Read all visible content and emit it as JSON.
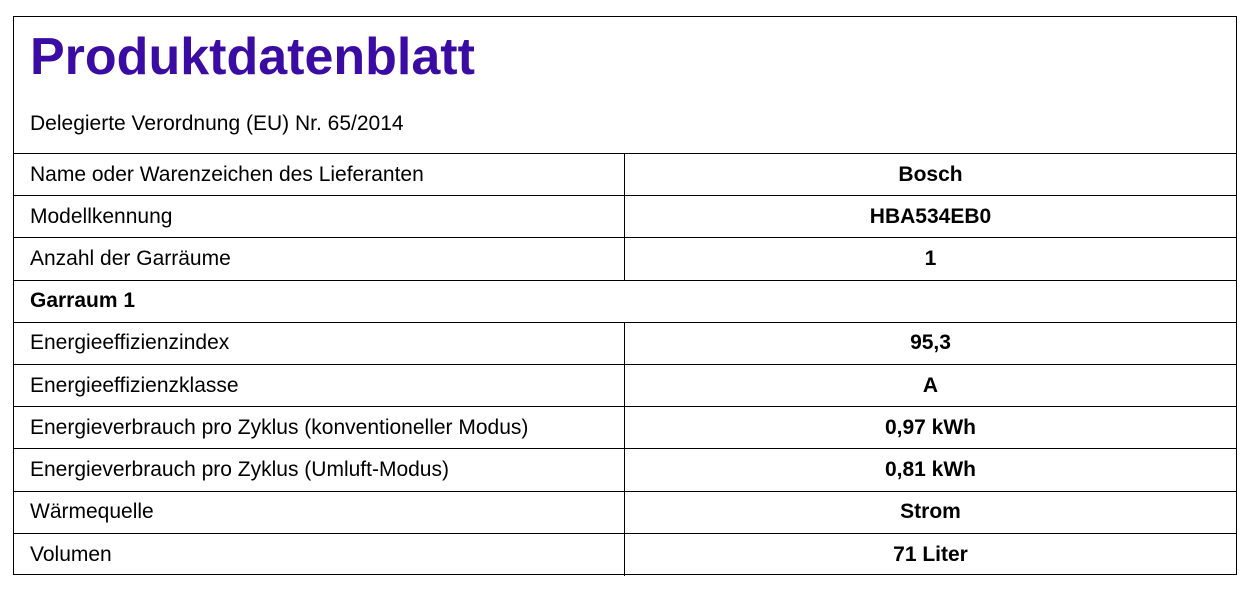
{
  "document": {
    "title": "Produktdatenblatt",
    "subtitle": "Delegierte Verordnung (EU) Nr. 65/2014",
    "title_color": "#3a0ca3"
  },
  "rows": [
    {
      "label": "Name oder Warenzeichen des Lieferanten",
      "value": "Bosch"
    },
    {
      "label": "Modellkennung",
      "value": "HBA534EB0"
    },
    {
      "label": "Anzahl der Garräume",
      "value": "1"
    },
    {
      "label": "Garraum 1"
    },
    {
      "label": "Energieeffizienzindex",
      "value": "95,3"
    },
    {
      "label": "Energieeffizienzklasse",
      "value": "A"
    },
    {
      "label": "Energieverbrauch pro Zyklus (konventioneller Modus)",
      "value": "0,97 kWh"
    },
    {
      "label": "Energieverbrauch pro Zyklus (Umluft-Modus)",
      "value": "0,81 kWh"
    },
    {
      "label": "Wärmequelle",
      "value": "Strom"
    },
    {
      "label": "Volumen",
      "value": "71 Liter"
    }
  ]
}
